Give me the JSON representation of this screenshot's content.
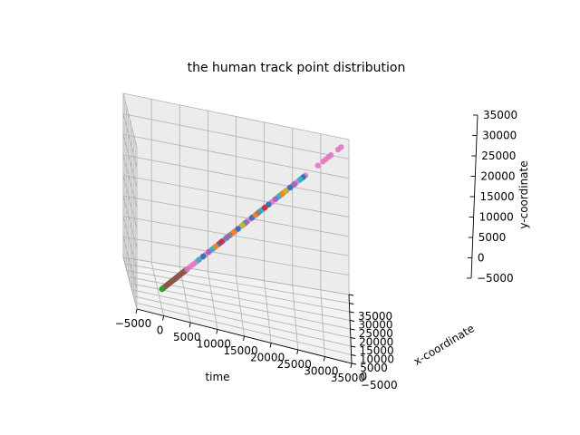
{
  "chart_data": {
    "type": "scatter",
    "projection": "3d",
    "title": "the human track point distribution",
    "xlabel": "time",
    "ylabel": "x-coordinate",
    "zlabel": "y-coordinate",
    "xlim": [
      -5000,
      35000
    ],
    "ylim": [
      -5000,
      35000
    ],
    "zlim": [
      -5000,
      35000
    ],
    "xticks": [
      "−5000",
      "0",
      "5000",
      "10000",
      "15000",
      "20000",
      "25000",
      "30000",
      "35000"
    ],
    "yticks": [
      "−5000",
      "0",
      "5000",
      "10000",
      "15000",
      "20000",
      "25000",
      "30000",
      "35000"
    ],
    "zticks": [
      "−5000",
      "0",
      "5000",
      "10000",
      "15000",
      "20000",
      "25000",
      "30000",
      "35000"
    ],
    "grid": true,
    "legend": "none",
    "series": [
      {
        "color": "#8c564b",
        "points": [
          [
            0,
            0,
            0
          ],
          [
            200,
            200,
            200
          ],
          [
            400,
            400,
            400
          ],
          [
            600,
            600,
            600
          ],
          [
            800,
            800,
            800
          ],
          [
            1000,
            1000,
            1000
          ],
          [
            1200,
            1200,
            1200
          ],
          [
            1400,
            1400,
            1400
          ],
          [
            1600,
            1600,
            1600
          ],
          [
            1800,
            1800,
            1800
          ],
          [
            2000,
            2000,
            2000
          ],
          [
            2200,
            2200,
            2200
          ],
          [
            2400,
            2400,
            2400
          ],
          [
            2600,
            2600,
            2600
          ],
          [
            2800,
            2800,
            2800
          ],
          [
            3000,
            3000,
            3000
          ],
          [
            3200,
            3200,
            3200
          ],
          [
            3400,
            3400,
            3400
          ],
          [
            3600,
            3600,
            3600
          ],
          [
            3800,
            3800,
            3800
          ],
          [
            4000,
            4000,
            4000
          ],
          [
            4200,
            4200,
            4200
          ],
          [
            4400,
            4400,
            4400
          ],
          [
            4600,
            4600,
            4600
          ],
          [
            4800,
            4800,
            4800
          ],
          [
            5000,
            5000,
            5000
          ]
        ]
      },
      {
        "color": "#2ca02c",
        "points": [
          [
            0,
            0,
            0
          ],
          [
            100,
            100,
            100
          ]
        ]
      },
      {
        "color": "#e377c2",
        "points": [
          [
            5000,
            5000,
            5000
          ],
          [
            5600,
            5600,
            5600
          ],
          [
            6200,
            6200,
            6200
          ],
          [
            6800,
            6800,
            6800
          ],
          [
            7400,
            7400,
            7400
          ],
          [
            8000,
            8000,
            8000
          ],
          [
            8600,
            8600,
            8600
          ],
          [
            9200,
            9200,
            9200
          ],
          [
            9800,
            9800,
            9800
          ],
          [
            10400,
            10400,
            10400
          ],
          [
            11000,
            11000,
            11000
          ],
          [
            11600,
            11600,
            11600
          ],
          [
            12200,
            12200,
            12200
          ],
          [
            12800,
            12800,
            12800
          ],
          [
            13400,
            13400,
            13400
          ],
          [
            14000,
            14000,
            14000
          ],
          [
            14600,
            14600,
            14600
          ],
          [
            15200,
            15200,
            15200
          ],
          [
            15800,
            15800,
            15800
          ],
          [
            16400,
            16400,
            16400
          ],
          [
            17000,
            17000,
            17000
          ],
          [
            17600,
            17600,
            17600
          ],
          [
            18200,
            18200,
            18200
          ],
          [
            18800,
            18800,
            18800
          ],
          [
            19400,
            19400,
            19400
          ],
          [
            20000,
            20000,
            20000
          ],
          [
            20600,
            20600,
            20600
          ],
          [
            21200,
            21200,
            21200
          ],
          [
            21800,
            21800,
            21800
          ],
          [
            22400,
            22400,
            22400
          ],
          [
            23000,
            23000,
            23000
          ],
          [
            23600,
            23600,
            23600
          ],
          [
            24200,
            24200,
            24200
          ],
          [
            24800,
            24800,
            24800
          ],
          [
            25400,
            25400,
            25400
          ],
          [
            26000,
            26000,
            26000
          ],
          [
            26600,
            26600,
            26600
          ],
          [
            27200,
            27200,
            27200
          ],
          [
            27800,
            27800,
            27800
          ],
          [
            28500,
            28500,
            28500
          ],
          [
            31000,
            31000,
            31000
          ],
          [
            32000,
            32000,
            32000
          ],
          [
            32600,
            32600,
            32600
          ],
          [
            33200,
            33200,
            33200
          ],
          [
            33600,
            33600,
            33600
          ],
          [
            35000,
            35000,
            35000
          ],
          [
            35600,
            35600,
            35600
          ]
        ]
      },
      {
        "color": "#1f77b4",
        "points": [
          [
            8200,
            8200,
            8200
          ],
          [
            11400,
            11400,
            11400
          ],
          [
            15100,
            15100,
            15100
          ],
          [
            17900,
            17900,
            17900
          ],
          [
            21200,
            21200,
            21200
          ],
          [
            25500,
            25500,
            25500
          ],
          [
            28100,
            28100,
            28100
          ]
        ]
      },
      {
        "color": "#17becf",
        "points": [
          [
            7300,
            7300,
            7300
          ],
          [
            10100,
            10100,
            10100
          ],
          [
            12700,
            12700,
            12700
          ],
          [
            16400,
            16400,
            16400
          ],
          [
            19800,
            19800,
            19800
          ],
          [
            23300,
            23300,
            23300
          ],
          [
            27500,
            27500,
            27500
          ]
        ]
      },
      {
        "color": "#9467bd",
        "points": [
          [
            9300,
            9300,
            9300
          ],
          [
            12900,
            12900,
            12900
          ],
          [
            16700,
            16700,
            16700
          ],
          [
            22600,
            22600,
            22600
          ],
          [
            26300,
            26300,
            26300
          ]
        ]
      },
      {
        "color": "#ff7f0e",
        "points": [
          [
            10700,
            10700,
            10700
          ],
          [
            14300,
            14300,
            14300
          ],
          [
            18600,
            18600,
            18600
          ],
          [
            23900,
            23900,
            23900
          ]
        ]
      },
      {
        "color": "#d62728",
        "points": [
          [
            11900,
            11900,
            11900
          ],
          [
            20400,
            20400,
            20400
          ]
        ]
      },
      {
        "color": "#7f7f7f",
        "points": [
          [
            13500,
            13500,
            13500
          ],
          [
            19200,
            19200,
            19200
          ]
        ]
      },
      {
        "color": "#bcbd22",
        "points": [
          [
            16000,
            16000,
            16000
          ],
          [
            24600,
            24600,
            24600
          ]
        ]
      }
    ]
  }
}
